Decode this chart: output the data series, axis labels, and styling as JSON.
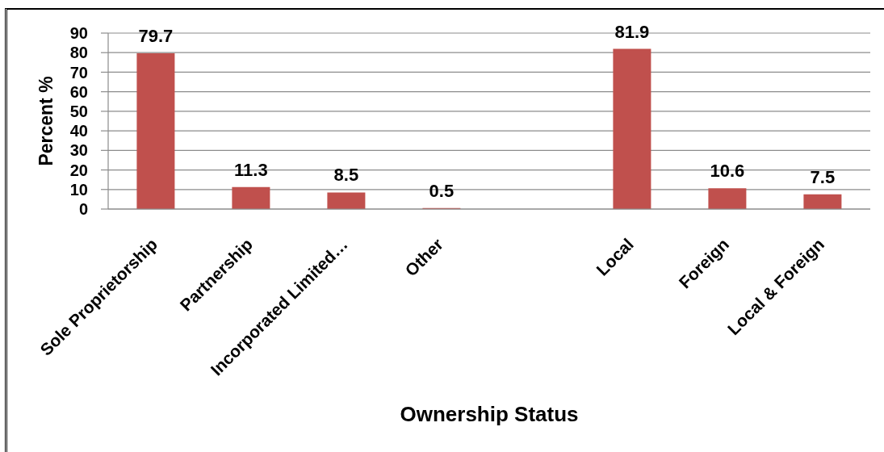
{
  "chart_data": {
    "type": "bar",
    "xlabel": "Ownership Status",
    "ylabel": "Percent %",
    "categories": [
      "Sole Proprietorship",
      "Partnership",
      "Incorporated Limited…",
      "Other",
      null,
      "Local",
      "Foreign",
      "Local & Foreign"
    ],
    "values": [
      79.7,
      11.3,
      8.5,
      0.5,
      null,
      81.9,
      10.6,
      7.5
    ],
    "color": "#c0504d",
    "ylim": [
      0,
      90
    ],
    "yticks": [
      0,
      10,
      20,
      30,
      40,
      50,
      60,
      70,
      80,
      90
    ],
    "grid": "y",
    "data_labels": true
  }
}
